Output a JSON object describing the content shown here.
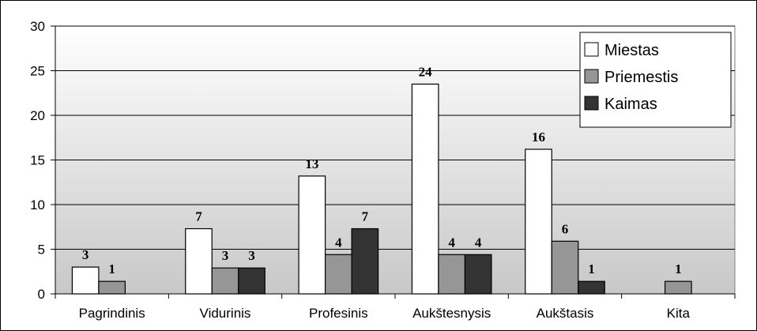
{
  "chart_data": {
    "type": "bar",
    "title": "",
    "xlabel": "",
    "ylabel": "",
    "ylim": [
      0,
      30
    ],
    "yticks": [
      0,
      5,
      10,
      15,
      20,
      25,
      30
    ],
    "grid": true,
    "legend_position": "top-right",
    "categories": [
      "Pagrindinis",
      "Vidurinis",
      "Profesinis",
      "Aukštesnysis",
      "Aukštasis",
      "Kita"
    ],
    "series": [
      {
        "name": "Miestas",
        "color": "#ffffff",
        "values": [
          3,
          7.3,
          13.2,
          23.5,
          16.2,
          null
        ],
        "labels": [
          "3",
          "7",
          "13",
          "24",
          "16",
          ""
        ]
      },
      {
        "name": "Priemestis",
        "color": "#969696",
        "values": [
          1.4,
          2.9,
          4.4,
          4.4,
          5.9,
          1.4
        ],
        "labels": [
          "1",
          "3",
          "4",
          "4",
          "6",
          "1"
        ]
      },
      {
        "name": "Kaimas",
        "color": "#333333",
        "values": [
          null,
          2.9,
          7.3,
          4.4,
          1.4,
          null
        ],
        "labels": [
          "",
          "3",
          "7",
          "4",
          "1",
          ""
        ]
      }
    ]
  }
}
